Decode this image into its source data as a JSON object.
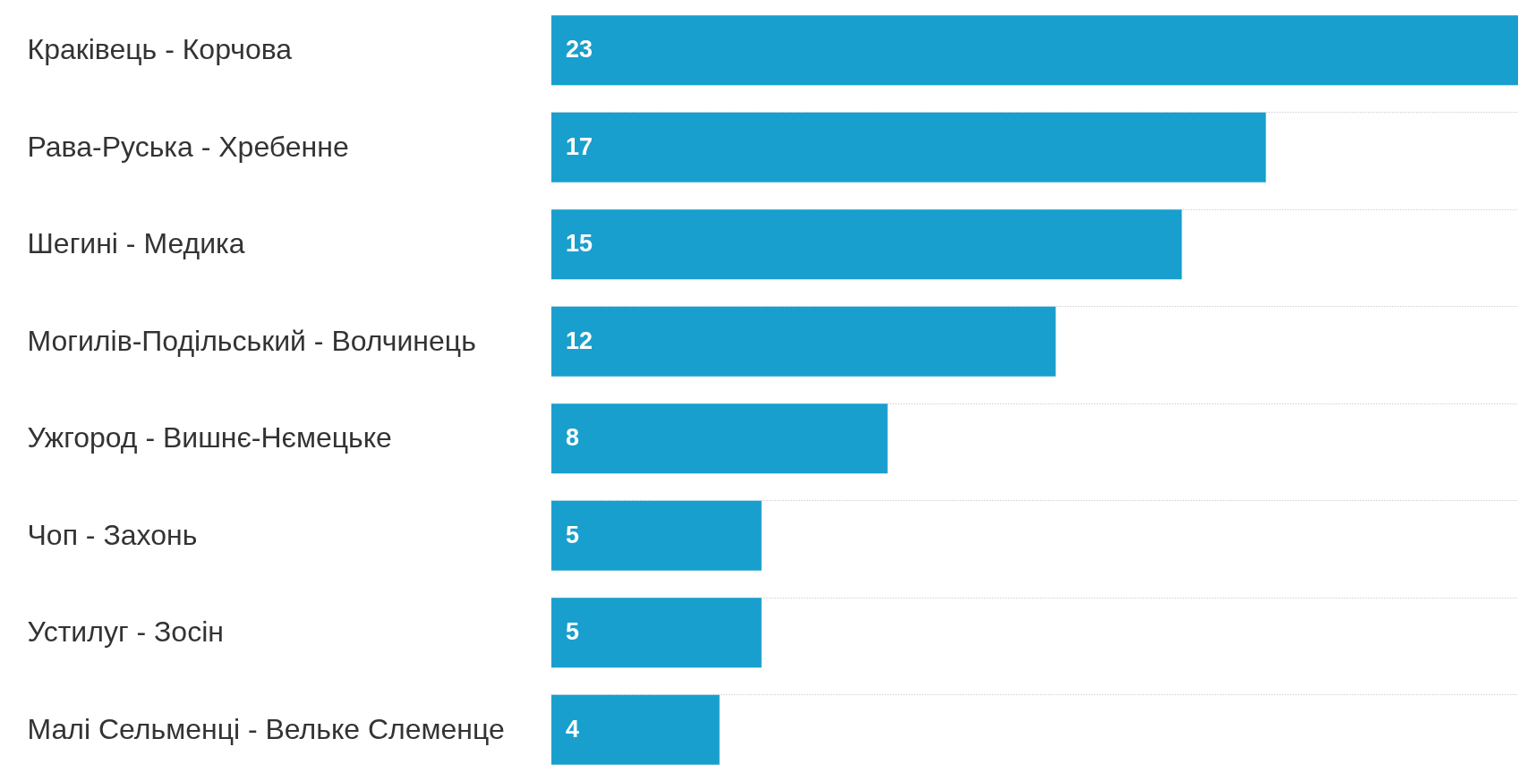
{
  "chart_data": {
    "type": "bar",
    "orientation": "horizontal",
    "categories": [
      "Краківець - Корчова",
      "Рава-Руська - Хребенне",
      "Шегині - Медика",
      "Могилів-Подільський - Волчинець",
      "Ужгород - Вишнє-Нємецьке",
      "Чоп - Захонь",
      "Устилуг - Зосін",
      "Малі Сельменці - Вельке Слеменце"
    ],
    "values": [
      23,
      17,
      15,
      12,
      8,
      5,
      5,
      4
    ],
    "color": "#199fcd",
    "data_labels": true,
    "grid": "y",
    "tick_labels": "y"
  }
}
